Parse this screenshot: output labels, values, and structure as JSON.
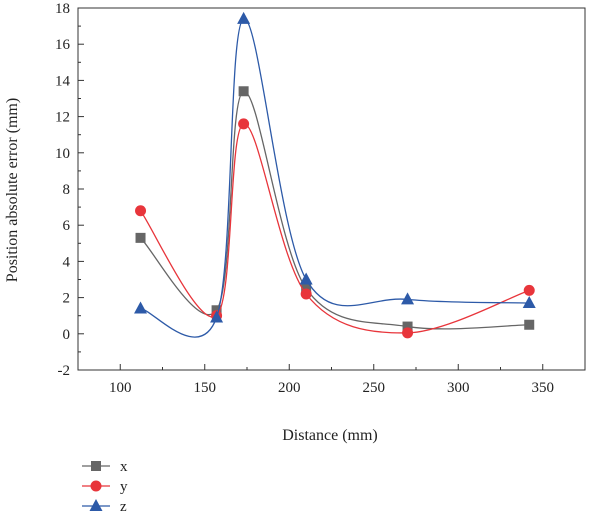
{
  "chart_data": {
    "type": "line",
    "xlabel": "Distance (mm)",
    "ylabel": "Position absolute error (mm)",
    "xlim": [
      75,
      375
    ],
    "ylim": [
      -2,
      18
    ],
    "xticks": [
      100,
      150,
      200,
      250,
      300,
      350
    ],
    "yticks": [
      -2,
      0,
      2,
      4,
      6,
      8,
      10,
      12,
      14,
      16,
      18
    ],
    "x": [
      112,
      157,
      173,
      210,
      270,
      342
    ],
    "series": [
      {
        "name": "x",
        "color": "#666666",
        "marker": "square",
        "values": [
          5.3,
          1.3,
          13.4,
          2.5,
          0.4,
          0.5
        ]
      },
      {
        "name": "y",
        "color": "#e8353b",
        "marker": "circle",
        "values": [
          6.8,
          1.0,
          11.6,
          2.2,
          0.05,
          2.4
        ]
      },
      {
        "name": "z",
        "color": "#2d5aa8",
        "marker": "triangle",
        "values": [
          1.4,
          0.9,
          17.4,
          3.0,
          1.9,
          1.7
        ]
      }
    ],
    "legend_position": "bottom-left"
  }
}
